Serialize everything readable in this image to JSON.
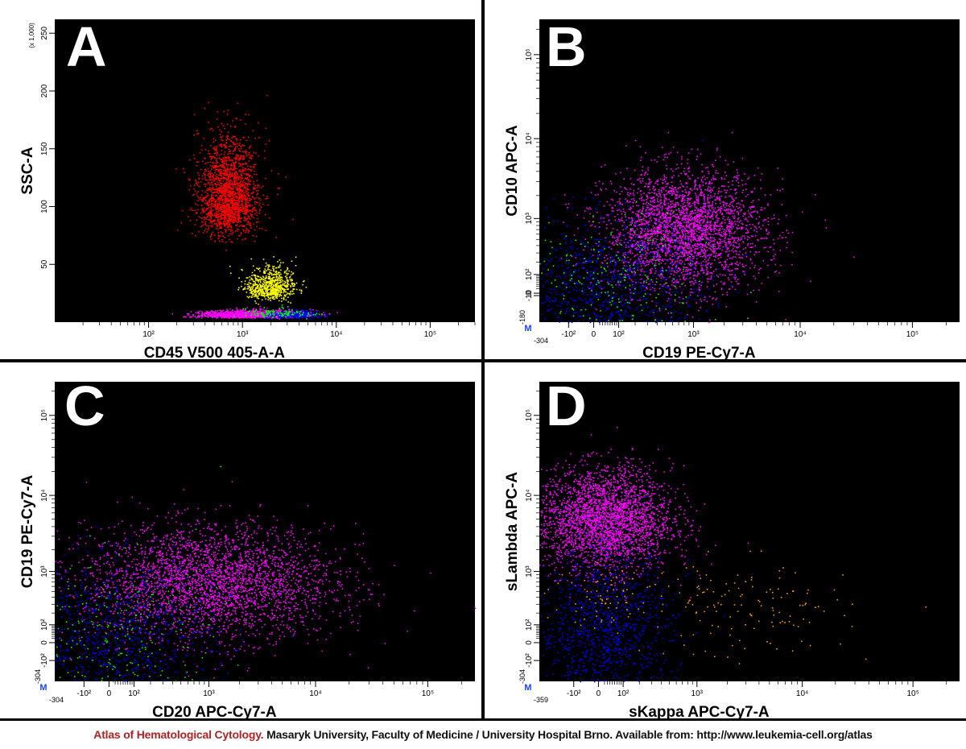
{
  "footer": {
    "brand": "Atlas of Hematological Cytology.",
    "text": " Masaryk University, Faculty of Medicine / University Hospital Brno. Available from: http://www.leukemia-cell.org/atlas"
  },
  "colors": {
    "background": "#000000",
    "panel_frame": "#ffffff",
    "red": "#ff0000",
    "yellow": "#ffff00",
    "magenta": "#ff00ff",
    "blue": "#0000ff",
    "green": "#00ff00",
    "orange": "#ff9900",
    "marker_blue": "#1a44ff"
  },
  "chart_data": [
    {
      "type": "scatter",
      "panel_letter": "A",
      "xlabel": "CD45 V500 405-A-A",
      "ylabel": "SSC-A",
      "y_multiplier_label": "(x 1,000)",
      "x_scale": "log",
      "y_scale": "linear",
      "xlim": [
        10,
        300000
      ],
      "ylim": [
        0,
        262
      ],
      "x_ticks": [
        {
          "v": 100,
          "label": "10²"
        },
        {
          "v": 1000,
          "label": "10³"
        },
        {
          "v": 10000,
          "label": "10⁴"
        },
        {
          "v": 100000,
          "label": "10⁵"
        }
      ],
      "y_ticks": [
        {
          "v": 50,
          "label": "50"
        },
        {
          "v": 100,
          "label": "100"
        },
        {
          "v": 150,
          "label": "150"
        },
        {
          "v": 200,
          "label": "200"
        },
        {
          "v": 250,
          "label": "250"
        }
      ],
      "populations": [
        {
          "color": "#ff0000",
          "center": [
            700,
            100
          ],
          "spread": [
            0.16,
            32
          ],
          "count": 2000
        },
        {
          "color": "#ffff00",
          "center": [
            2000,
            28
          ],
          "spread": [
            0.13,
            11
          ],
          "count": 700
        },
        {
          "color": "#ff00ff",
          "center": [
            1200,
            6
          ],
          "spread": [
            0.28,
            2.5
          ],
          "count": 1300
        },
        {
          "color": "#0000ff",
          "center": [
            3500,
            6
          ],
          "spread": [
            0.14,
            2.5
          ],
          "count": 300
        },
        {
          "color": "#00ff00",
          "center": [
            2500,
            7
          ],
          "spread": [
            0.2,
            3
          ],
          "count": 120
        }
      ]
    },
    {
      "type": "scatter",
      "panel_letter": "B",
      "xlabel": "CD19 PE-Cy7-A",
      "ylabel": "CD10 APC-A",
      "x_scale": "biexponential",
      "y_scale": "biexponential",
      "xlim": [
        -304,
        262144
      ],
      "ylim": [
        -180,
        262144
      ],
      "x_min_label": "-304",
      "y_min_label": "-180",
      "marker_label": "M",
      "x_ticks": [
        {
          "v": -100,
          "label": "-10²"
        },
        {
          "v": 0,
          "label": "0"
        },
        {
          "v": 100,
          "label": "10²"
        },
        {
          "v": 1000,
          "label": "10³"
        },
        {
          "v": 10000,
          "label": "10⁴"
        },
        {
          "v": 100000,
          "label": "10⁵"
        }
      ],
      "y_ticks": [
        {
          "v": -10,
          "label": "-10"
        },
        {
          "v": 0,
          "label": "0"
        },
        {
          "v": 100,
          "label": "10²"
        },
        {
          "v": 1000,
          "label": "10³"
        },
        {
          "v": 10000,
          "label": "10⁴"
        },
        {
          "v": 100000,
          "label": "10⁵"
        }
      ],
      "populations": [
        {
          "color": "#ff00ff",
          "center": [
            800,
            700
          ],
          "spread": [
            0.35,
            0.35
          ],
          "count": 3000
        },
        {
          "color": "#0000ff",
          "center": [
            40,
            40
          ],
          "spread": [
            0.45,
            0.4
          ],
          "count": 1000
        },
        {
          "color": "#00ff00",
          "center": [
            40,
            50
          ],
          "spread": [
            0.45,
            0.4
          ],
          "count": 260
        }
      ]
    },
    {
      "type": "scatter",
      "panel_letter": "C",
      "xlabel": "CD20 APC-Cy7-A",
      "ylabel": "CD19 PE-Cy7-A",
      "x_scale": "biexponential",
      "y_scale": "biexponential",
      "xlim": [
        -304,
        262144
      ],
      "ylim": [
        -304,
        262144
      ],
      "x_min_label": "-304",
      "y_min_label": "-304",
      "marker_label": "M",
      "x_ticks": [
        {
          "v": -100,
          "label": "-10²"
        },
        {
          "v": 0,
          "label": "0"
        },
        {
          "v": 100,
          "label": "10²"
        },
        {
          "v": 1000,
          "label": "10³"
        },
        {
          "v": 10000,
          "label": "10⁴"
        },
        {
          "v": 100000,
          "label": "10⁵"
        }
      ],
      "y_ticks": [
        {
          "v": -100,
          "label": "-10²"
        },
        {
          "v": 0,
          "label": "0"
        },
        {
          "v": 100,
          "label": "10²"
        },
        {
          "v": 1000,
          "label": "10³"
        },
        {
          "v": 10000,
          "label": "10⁴"
        },
        {
          "v": 100000,
          "label": "10⁵"
        }
      ],
      "populations": [
        {
          "color": "#ff00ff",
          "center": [
            1000,
            700
          ],
          "spread": [
            0.55,
            0.35
          ],
          "count": 3200
        },
        {
          "color": "#0000ff",
          "center": [
            5,
            15
          ],
          "spread": [
            0.45,
            0.5
          ],
          "count": 1000
        },
        {
          "color": "#00ff00",
          "center": [
            10,
            20
          ],
          "spread": [
            0.5,
            0.5
          ],
          "count": 260
        }
      ]
    },
    {
      "type": "scatter",
      "panel_letter": "D",
      "xlabel": "sKappa APC-Cy7-A",
      "ylabel": "sLambda APC-A",
      "x_scale": "biexponential",
      "y_scale": "biexponential",
      "xlim": [
        -359,
        262144
      ],
      "ylim": [
        -304,
        262144
      ],
      "x_min_label": "-359",
      "y_min_label": "-304",
      "marker_label": "M",
      "x_ticks": [
        {
          "v": -100,
          "label": "-10²"
        },
        {
          "v": 0,
          "label": "0"
        },
        {
          "v": 100,
          "label": "10²"
        },
        {
          "v": 1000,
          "label": "10³"
        },
        {
          "v": 10000,
          "label": "10⁴"
        },
        {
          "v": 100000,
          "label": "10⁵"
        }
      ],
      "y_ticks": [
        {
          "v": -100,
          "label": "-10²"
        },
        {
          "v": 0,
          "label": "0"
        },
        {
          "v": 100,
          "label": "10²"
        },
        {
          "v": 1000,
          "label": "10³"
        },
        {
          "v": 10000,
          "label": "10⁴"
        },
        {
          "v": 100000,
          "label": "10⁵"
        }
      ],
      "populations": [
        {
          "color": "#ff00ff",
          "center": [
            20,
            5000
          ],
          "spread": [
            0.3,
            0.32
          ],
          "count": 3000
        },
        {
          "color": "#0000ff",
          "center": [
            20,
            70
          ],
          "spread": [
            0.3,
            0.5
          ],
          "count": 1100
        },
        {
          "color": "#ff9900",
          "center": [
            3000,
            250
          ],
          "spread": [
            0.45,
            0.3
          ],
          "count": 130
        },
        {
          "color": "#ff9900",
          "center": [
            50,
            400
          ],
          "spread": [
            0.3,
            0.2
          ],
          "count": 80
        }
      ]
    }
  ]
}
